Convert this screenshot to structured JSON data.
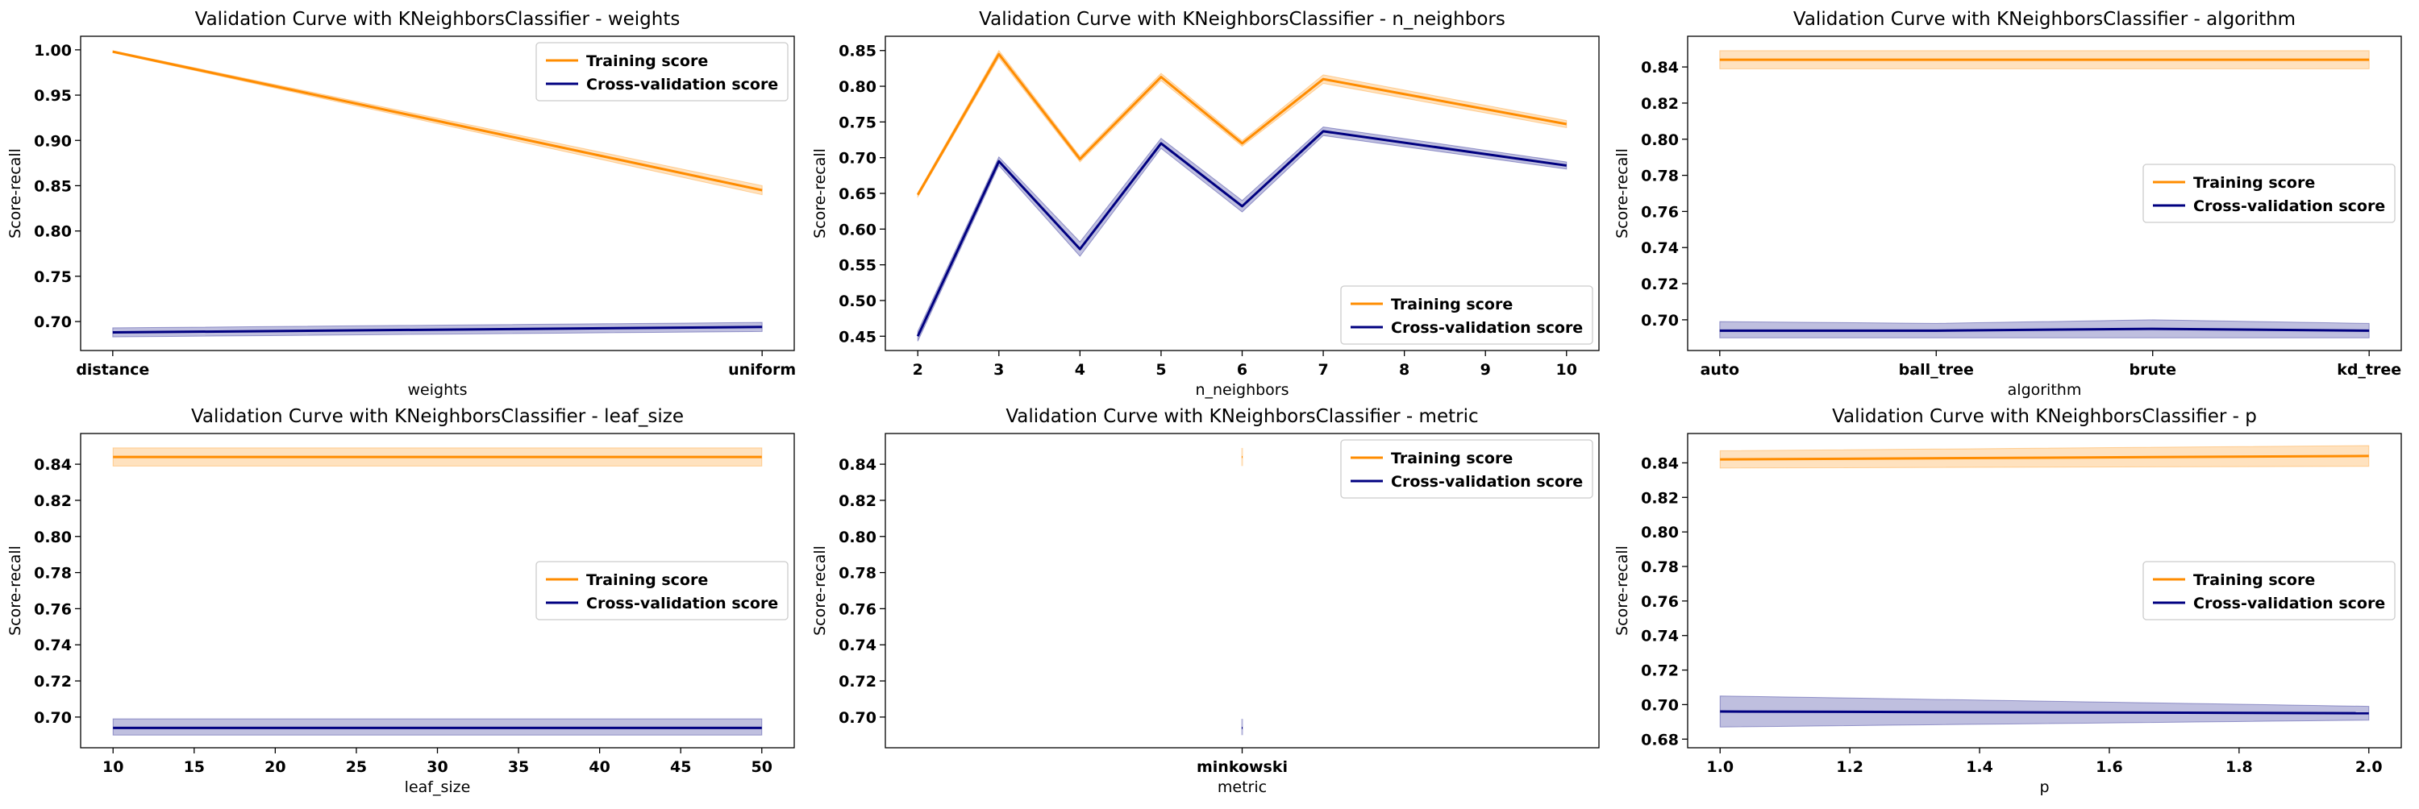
{
  "colors": {
    "training": "#ff8c00",
    "validation": "#000080"
  },
  "legend_labels": {
    "training": "Training score",
    "validation": "Cross-validation score"
  },
  "chart_data": [
    {
      "type": "line",
      "categorical": true,
      "title": "Validation Curve with KNeighborsClassifier - weights",
      "xlabel": "weights",
      "ylabel": "Score-recall",
      "x": [
        "distance",
        "uniform"
      ],
      "ylim": [
        0.668,
        1.015
      ],
      "yticks": [
        0.7,
        0.75,
        0.8,
        0.85,
        0.9,
        0.95,
        1.0
      ],
      "legend": "upper right",
      "series": [
        {
          "key": "training",
          "values": [
            0.998,
            0.845
          ],
          "lower": [
            0.997,
            0.84
          ],
          "upper": [
            0.999,
            0.85
          ]
        },
        {
          "key": "validation",
          "values": [
            0.688,
            0.694
          ],
          "lower": [
            0.683,
            0.689
          ],
          "upper": [
            0.693,
            0.699
          ]
        }
      ]
    },
    {
      "type": "line",
      "categorical": false,
      "title": "Validation Curve with KNeighborsClassifier - n_neighbors",
      "xlabel": "n_neighbors",
      "ylabel": "Score-recall",
      "x": [
        2,
        3,
        4,
        5,
        6,
        7,
        10
      ],
      "xlim": [
        1.6,
        10.4
      ],
      "xticks": [
        2,
        3,
        4,
        5,
        6,
        7,
        8,
        9,
        10
      ],
      "ylim": [
        0.43,
        0.87
      ],
      "yticks": [
        0.45,
        0.5,
        0.55,
        0.6,
        0.65,
        0.7,
        0.75,
        0.8,
        0.85
      ],
      "legend": "lower right",
      "series": [
        {
          "key": "training",
          "values": [
            0.648,
            0.845,
            0.698,
            0.813,
            0.72,
            0.81,
            0.747
          ],
          "lower": [
            0.645,
            0.84,
            0.694,
            0.808,
            0.716,
            0.804,
            0.742
          ],
          "upper": [
            0.651,
            0.85,
            0.702,
            0.818,
            0.724,
            0.816,
            0.752
          ]
        },
        {
          "key": "validation",
          "values": [
            0.45,
            0.695,
            0.572,
            0.72,
            0.632,
            0.737,
            0.689
          ],
          "lower": [
            0.443,
            0.689,
            0.562,
            0.713,
            0.624,
            0.731,
            0.684
          ],
          "upper": [
            0.457,
            0.701,
            0.582,
            0.727,
            0.64,
            0.743,
            0.694
          ]
        }
      ]
    },
    {
      "type": "line",
      "categorical": true,
      "title": "Validation Curve with KNeighborsClassifier - algorithm",
      "xlabel": "algorithm",
      "ylabel": "Score-recall",
      "x": [
        "auto",
        "ball_tree",
        "brute",
        "kd_tree"
      ],
      "ylim": [
        0.683,
        0.857
      ],
      "yticks": [
        0.7,
        0.72,
        0.74,
        0.76,
        0.78,
        0.8,
        0.82,
        0.84
      ],
      "legend": "center right",
      "series": [
        {
          "key": "training",
          "values": [
            0.844,
            0.844,
            0.844,
            0.844
          ],
          "lower": [
            0.839,
            0.839,
            0.839,
            0.839
          ],
          "upper": [
            0.849,
            0.849,
            0.849,
            0.849
          ]
        },
        {
          "key": "validation",
          "values": [
            0.694,
            0.694,
            0.695,
            0.694
          ],
          "lower": [
            0.69,
            0.69,
            0.69,
            0.69
          ],
          "upper": [
            0.699,
            0.698,
            0.7,
            0.698
          ]
        }
      ]
    },
    {
      "type": "line",
      "categorical": false,
      "title": "Validation Curve with KNeighborsClassifier - leaf_size",
      "xlabel": "leaf_size",
      "ylabel": "Score-recall",
      "x": [
        10,
        20,
        30,
        40,
        50
      ],
      "xlim": [
        8,
        52
      ],
      "xticks": [
        10,
        15,
        20,
        25,
        30,
        35,
        40,
        45,
        50
      ],
      "ylim": [
        0.683,
        0.857
      ],
      "yticks": [
        0.7,
        0.72,
        0.74,
        0.76,
        0.78,
        0.8,
        0.82,
        0.84
      ],
      "legend": "center right",
      "series": [
        {
          "key": "training",
          "values": [
            0.844,
            0.844,
            0.844,
            0.844,
            0.844
          ],
          "lower": [
            0.839,
            0.839,
            0.839,
            0.839,
            0.839
          ],
          "upper": [
            0.849,
            0.849,
            0.849,
            0.849,
            0.849
          ]
        },
        {
          "key": "validation",
          "values": [
            0.694,
            0.694,
            0.694,
            0.694,
            0.694
          ],
          "lower": [
            0.69,
            0.69,
            0.69,
            0.69,
            0.69
          ],
          "upper": [
            0.699,
            0.699,
            0.699,
            0.699,
            0.699
          ]
        }
      ]
    },
    {
      "type": "line",
      "categorical": true,
      "single_point": true,
      "title": "Validation Curve with KNeighborsClassifier - metric",
      "xlabel": "metric",
      "ylabel": "Score-recall",
      "x": [
        "minkowski"
      ],
      "ylim": [
        0.683,
        0.857
      ],
      "yticks": [
        0.7,
        0.72,
        0.74,
        0.76,
        0.78,
        0.8,
        0.82,
        0.84
      ],
      "legend": "upper right",
      "series": [
        {
          "key": "training",
          "values": [
            0.844
          ],
          "lower": [
            0.839
          ],
          "upper": [
            0.849
          ]
        },
        {
          "key": "validation",
          "values": [
            0.694
          ],
          "lower": [
            0.69
          ],
          "upper": [
            0.699
          ]
        }
      ]
    },
    {
      "type": "line",
      "categorical": false,
      "title": "Validation Curve with KNeighborsClassifier - p",
      "xlabel": "p",
      "ylabel": "Score-recall",
      "x": [
        1.0,
        2.0
      ],
      "xlim": [
        0.95,
        2.05
      ],
      "xticks": [
        1.0,
        1.2,
        1.4,
        1.6,
        1.8,
        2.0
      ],
      "xtick_decimals": 1,
      "ylim": [
        0.675,
        0.857
      ],
      "yticks": [
        0.68,
        0.7,
        0.72,
        0.74,
        0.76,
        0.78,
        0.8,
        0.82,
        0.84
      ],
      "legend": "center right",
      "series": [
        {
          "key": "training",
          "values": [
            0.842,
            0.844
          ],
          "lower": [
            0.837,
            0.838
          ],
          "upper": [
            0.847,
            0.85
          ]
        },
        {
          "key": "validation",
          "values": [
            0.696,
            0.695
          ],
          "lower": [
            0.687,
            0.691
          ],
          "upper": [
            0.705,
            0.699
          ]
        }
      ]
    }
  ]
}
